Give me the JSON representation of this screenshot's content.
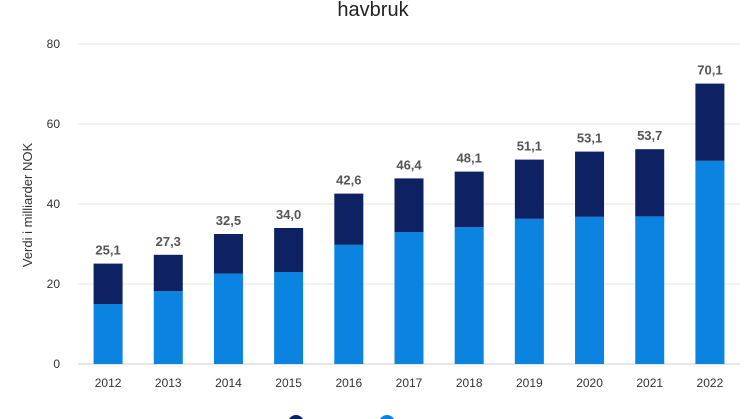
{
  "chart_data": {
    "type": "bar",
    "stacked": true,
    "title": "havbruk",
    "xlabel": "",
    "ylabel": "Verdi i milliarder NOK",
    "ylim": [
      0,
      80
    ],
    "yticks": [
      0,
      20,
      40,
      60,
      80
    ],
    "grid": true,
    "legend_position": "bottom",
    "categories": [
      "2012",
      "2013",
      "2014",
      "2015",
      "2016",
      "2017",
      "2018",
      "2019",
      "2020",
      "2021",
      "2022"
    ],
    "series": [
      {
        "name": "",
        "color": "#0a84e0",
        "values": [
          15.0,
          18.2,
          22.6,
          23.0,
          29.8,
          33.0,
          34.2,
          36.3,
          36.8,
          36.9,
          50.8
        ]
      },
      {
        "name": "",
        "color": "#0d2163",
        "values": [
          10.1,
          9.1,
          9.9,
          11.0,
          12.8,
          13.4,
          13.9,
          14.8,
          16.3,
          16.8,
          19.3
        ]
      }
    ],
    "totals": [
      "25,1",
      "27,3",
      "32,5",
      "34,0",
      "42,6",
      "46,4",
      "48,1",
      "51,1",
      "53,1",
      "53,7",
      "70,1"
    ]
  }
}
